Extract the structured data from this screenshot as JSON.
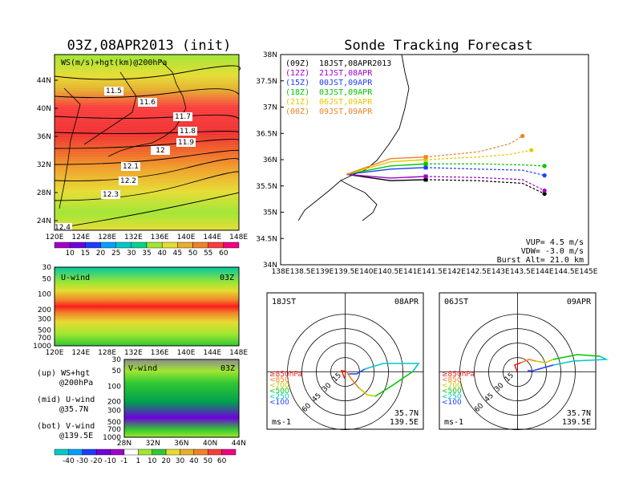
{
  "left_title": "03Z,08APR2013 (init)",
  "right_title": "Sonde Tracking Forecast",
  "ws_panel": {
    "label": "WS(m/s)+hgt(km)@200hPa",
    "lat_ticks": [
      "44N",
      "40N",
      "36N",
      "32N",
      "28N",
      "24N"
    ],
    "lon_ticks": [
      "120E",
      "124E",
      "128E",
      "132E",
      "136E",
      "140E",
      "144E",
      "148E"
    ],
    "contour_labels": [
      "11.5",
      "11.6",
      "11.7",
      "11.8",
      "11.9",
      "12",
      "12.1",
      "12.2",
      "12.3",
      "12.4"
    ],
    "colorbar": [
      "10",
      "15",
      "20",
      "25",
      "30",
      "35",
      "40",
      "45",
      "50",
      "55",
      "60"
    ],
    "colorbar_colors": [
      "#a000c8",
      "#6e00dc",
      "#1e3cff",
      "#00a0ff",
      "#00c8c8",
      "#00d28c",
      "#a0e632",
      "#e6dc32",
      "#e6af2d",
      "#f08228",
      "#fa3c3c",
      "#f00082"
    ]
  },
  "u_panel": {
    "label": "U-wind",
    "time": "03Z",
    "p_ticks": [
      "30",
      "50",
      "100",
      "200",
      "300",
      "500",
      "700",
      "1000"
    ],
    "lon_ticks": [
      "120E",
      "124E",
      "128E",
      "132E",
      "136E",
      "140E",
      "144E",
      "148E"
    ]
  },
  "v_panel": {
    "label": "V-wind",
    "time": "03Z",
    "p_ticks": [
      "30",
      "50",
      "100",
      "200",
      "300",
      "500",
      "700",
      "1000"
    ],
    "lat_ticks": [
      "28N",
      "32N",
      "36N",
      "40N",
      "44N"
    ]
  },
  "legend_text": {
    "up": "(up) WS+hgt",
    "up2": "@200hPa",
    "mid": "(mid) U-wind",
    "mid2": "@35.7N",
    "bot": "(bot) V-wind",
    "bot2": "@139.5E"
  },
  "bottom_colorbar": [
    "-40",
    "-30",
    "-20",
    "-10",
    "-1",
    "1",
    "10",
    "20",
    "30",
    "40",
    "50",
    "60"
  ],
  "track_panel": {
    "lat_ticks": [
      "38N",
      "37.5N",
      "37N",
      "36.5N",
      "36N",
      "35.5N",
      "35N",
      "34.5N",
      "34N"
    ],
    "lon_ticks": [
      "138E",
      "138.5E",
      "139E",
      "139.5E",
      "140E",
      "140.5E",
      "141E",
      "141.5E",
      "142E",
      "142.5E",
      "143E",
      "143.5E",
      "144E",
      "144.5E",
      "145E"
    ],
    "launches": [
      {
        "utc": "(09Z)",
        "jst": "18JST,08APR2013",
        "color": "#000000"
      },
      {
        "utc": "(12Z)",
        "jst": "21JST,08APR",
        "color": "#a000c8"
      },
      {
        "utc": "(15Z)",
        "jst": "00JST,09APR",
        "color": "#1e3cff"
      },
      {
        "utc": "(18Z)",
        "jst": "03JST,09APR",
        "color": "#00c800"
      },
      {
        "utc": "(21Z)",
        "jst": "06JST,09APR",
        "color": "#e6c800"
      },
      {
        "utc": "(00Z)",
        "jst": "09JST,09APR",
        "color": "#f08228"
      }
    ],
    "vup": "VUP= 4.5 m/s",
    "vdw": "VDW= -3.0 m/s",
    "burst": "Burst Alt= 21.0 km"
  },
  "hodo_left": {
    "time": "18JST",
    "date": "08APR",
    "lat": "35.7N",
    "lon": "139.5E",
    "unit": "ms-1"
  },
  "hodo_right": {
    "time": "06JST",
    "date": "09APR",
    "lat": "35.7N",
    "lon": "139.5E",
    "unit": "ms-1"
  },
  "hodo_rings": [
    "15",
    "30",
    "45",
    "60"
  ],
  "hodo_legend": [
    "≥850hPa",
    "<850",
    "<700",
    "<500",
    "<250",
    "<100"
  ],
  "hodo_legend_colors": [
    "#fa1e1e",
    "#f08228",
    "#c8c800",
    "#00c800",
    "#00c8c8",
    "#1e3cff"
  ],
  "chart_data": {
    "type": "other",
    "title": "Sonde Tracking Forecast",
    "tracks": [
      {
        "name": "(09Z) 18JST,08APR2013",
        "points": [
          [
            139.5,
            35.72
          ],
          [
            140.5,
            35.6
          ],
          [
            141.3,
            35.62
          ],
          [
            142.5,
            35.6
          ],
          [
            143.5,
            35.55
          ],
          [
            144.0,
            35.35
          ]
        ]
      },
      {
        "name": "(12Z) 21JST,08APR",
        "points": [
          [
            139.5,
            35.72
          ],
          [
            140.5,
            35.65
          ],
          [
            141.3,
            35.68
          ],
          [
            142.5,
            35.66
          ],
          [
            143.5,
            35.62
          ],
          [
            144.0,
            35.41
          ]
        ]
      },
      {
        "name": "(15Z) 00JST,09APR",
        "points": [
          [
            139.5,
            35.72
          ],
          [
            140.5,
            35.82
          ],
          [
            141.3,
            35.85
          ],
          [
            142.5,
            35.82
          ],
          [
            143.5,
            35.8
          ],
          [
            144.0,
            35.7
          ]
        ]
      },
      {
        "name": "(18Z) 03JST,09APR",
        "points": [
          [
            139.5,
            35.72
          ],
          [
            140.5,
            35.88
          ],
          [
            141.3,
            35.92
          ],
          [
            142.5,
            35.92
          ],
          [
            143.5,
            35.9
          ],
          [
            144.0,
            35.88
          ]
        ]
      },
      {
        "name": "(21Z) 06JST,09APR",
        "points": [
          [
            139.5,
            35.72
          ],
          [
            140.5,
            35.96
          ],
          [
            141.3,
            36.0
          ],
          [
            142.5,
            36.05
          ],
          [
            143.2,
            36.1
          ],
          [
            143.7,
            36.18
          ]
        ]
      },
      {
        "name": "(00Z) 09JST,09APR",
        "points": [
          [
            139.5,
            35.72
          ],
          [
            140.5,
            36.02
          ],
          [
            141.3,
            36.05
          ],
          [
            142.5,
            36.15
          ],
          [
            143.2,
            36.3
          ],
          [
            143.5,
            36.45
          ]
        ]
      }
    ],
    "xlim": [
      138,
      145
    ],
    "ylim": [
      34,
      38
    ]
  }
}
